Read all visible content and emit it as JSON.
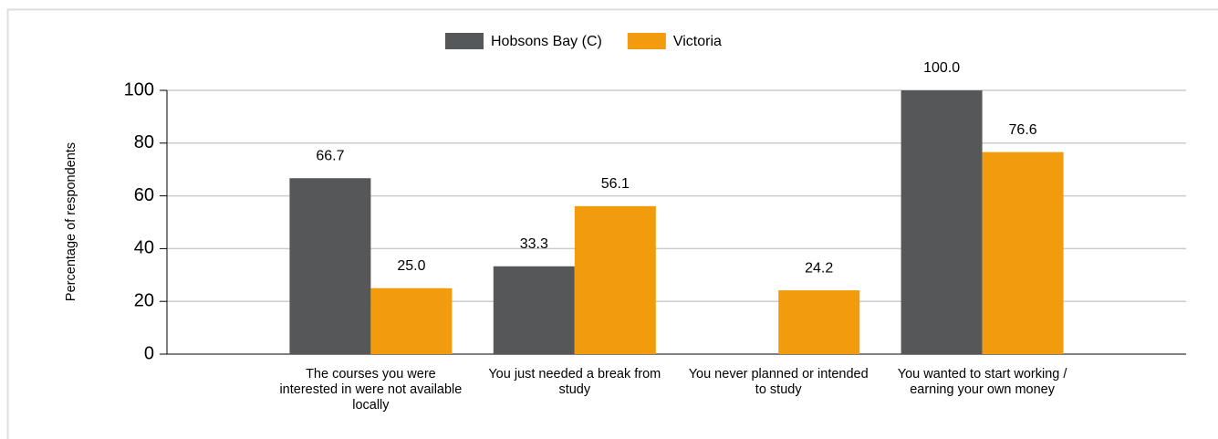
{
  "chart_data": {
    "type": "bar",
    "y_label": "Percentage of respondents",
    "categories": [
      "The courses you were interested in were not available locally",
      "You just needed a break from study",
      "You never planned or intended to study",
      "You wanted to start working / earning your own money"
    ],
    "series": [
      {
        "name": "Hobsons Bay (C)",
        "color": "#555759",
        "values": [
          66.7,
          33.3,
          null,
          100
        ],
        "value_labels": [
          "66.7",
          "33.3",
          null,
          "100.0"
        ]
      },
      {
        "name": "Victoria",
        "color": "#f29b0c",
        "values": [
          25,
          56.1,
          24.2,
          76.6
        ],
        "value_labels": [
          "25.0",
          "56.1",
          "24.2",
          "76.6"
        ]
      }
    ],
    "ylim": [
      0,
      100
    ],
    "yticks": [
      0,
      20,
      40,
      60,
      80,
      100
    ],
    "grid": true,
    "legend": "top"
  }
}
